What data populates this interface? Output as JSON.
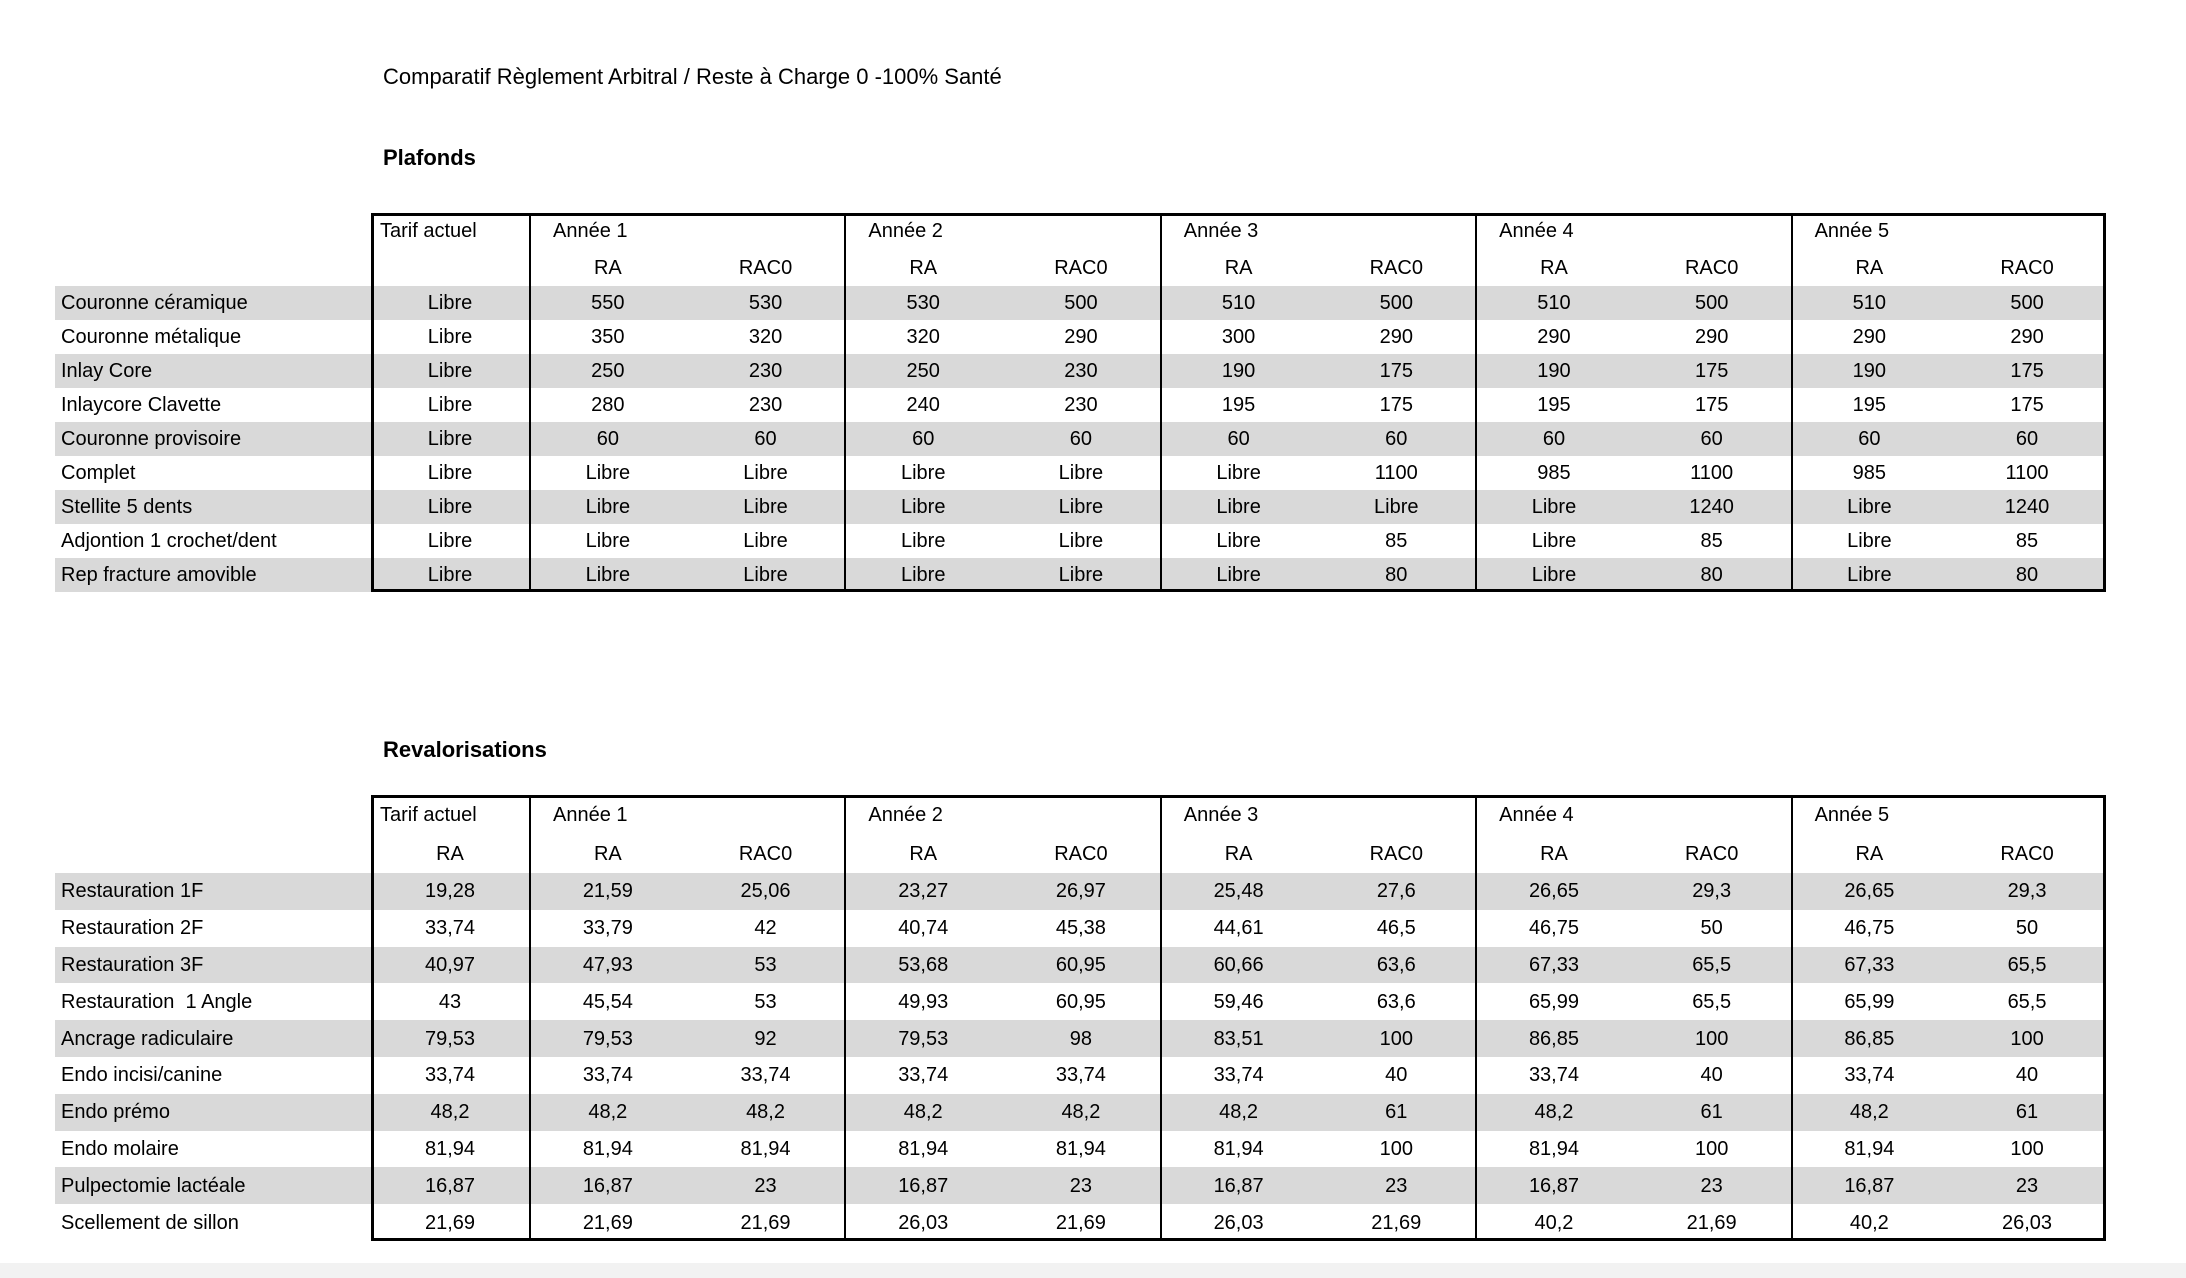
{
  "title": "Comparatif Règlement Arbitral / Reste à Charge 0 -100% Santé",
  "tables": [
    {
      "section_title": "Plafonds",
      "corner_label": "Tarif actuel",
      "corner_sublabel": "",
      "year_headers": [
        "Année 1",
        "Année 2",
        "Année 3",
        "Année 4",
        "Année 5"
      ],
      "sub_headers": [
        "RA",
        "RAC0"
      ],
      "rows": [
        {
          "label": "Couronne céramique",
          "tarif": "Libre",
          "values": [
            "550",
            "530",
            "530",
            "500",
            "510",
            "500",
            "510",
            "500",
            "510",
            "500"
          ]
        },
        {
          "label": "Couronne métalique",
          "tarif": "Libre",
          "values": [
            "350",
            "320",
            "320",
            "290",
            "300",
            "290",
            "290",
            "290",
            "290",
            "290"
          ]
        },
        {
          "label": "Inlay Core",
          "tarif": "Libre",
          "values": [
            "250",
            "230",
            "250",
            "230",
            "190",
            "175",
            "190",
            "175",
            "190",
            "175"
          ]
        },
        {
          "label": "Inlaycore Clavette",
          "tarif": "Libre",
          "values": [
            "280",
            "230",
            "240",
            "230",
            "195",
            "175",
            "195",
            "175",
            "195",
            "175"
          ]
        },
        {
          "label": "Couronne provisoire",
          "tarif": "Libre",
          "values": [
            "60",
            "60",
            "60",
            "60",
            "60",
            "60",
            "60",
            "60",
            "60",
            "60"
          ]
        },
        {
          "label": "Complet",
          "tarif": "Libre",
          "values": [
            "Libre",
            "Libre",
            "Libre",
            "Libre",
            "Libre",
            "1100",
            "985",
            "1100",
            "985",
            "1100"
          ]
        },
        {
          "label": "Stellite 5 dents",
          "tarif": "Libre",
          "values": [
            "Libre",
            "Libre",
            "Libre",
            "Libre",
            "Libre",
            "Libre",
            "Libre",
            "1240",
            "Libre",
            "1240"
          ]
        },
        {
          "label": "Adjontion 1 crochet/dent",
          "tarif": "Libre",
          "values": [
            "Libre",
            "Libre",
            "Libre",
            "Libre",
            "Libre",
            "85",
            "Libre",
            "85",
            "Libre",
            "85"
          ]
        },
        {
          "label": "Rep fracture amovible",
          "tarif": "Libre",
          "values": [
            "Libre",
            "Libre",
            "Libre",
            "Libre",
            "Libre",
            "80",
            "Libre",
            "80",
            "Libre",
            "80"
          ]
        }
      ]
    },
    {
      "section_title": "Revalorisations",
      "corner_label": "Tarif actuel",
      "corner_sublabel": "RA",
      "year_headers": [
        "Année 1",
        "Année 2",
        "Année 3",
        "Année 4",
        "Année 5"
      ],
      "sub_headers": [
        "RA",
        "RAC0"
      ],
      "rows": [
        {
          "label": "Restauration 1F",
          "tarif": "19,28",
          "values": [
            "21,59",
            "25,06",
            "23,27",
            "26,97",
            "25,48",
            "27,6",
            "26,65",
            "29,3",
            "26,65",
            "29,3"
          ]
        },
        {
          "label": "Restauration 2F",
          "tarif": "33,74",
          "values": [
            "33,79",
            "42",
            "40,74",
            "45,38",
            "44,61",
            "46,5",
            "46,75",
            "50",
            "46,75",
            "50"
          ]
        },
        {
          "label": "Restauration 3F",
          "tarif": "40,97",
          "values": [
            "47,93",
            "53",
            "53,68",
            "60,95",
            "60,66",
            "63,6",
            "67,33",
            "65,5",
            "67,33",
            "65,5"
          ]
        },
        {
          "label": "Restauration  1 Angle",
          "tarif": "43",
          "values": [
            "45,54",
            "53",
            "49,93",
            "60,95",
            "59,46",
            "63,6",
            "65,99",
            "65,5",
            "65,99",
            "65,5"
          ]
        },
        {
          "label": "Ancrage radiculaire",
          "tarif": "79,53",
          "values": [
            "79,53",
            "92",
            "79,53",
            "98",
            "83,51",
            "100",
            "86,85",
            "100",
            "86,85",
            "100"
          ]
        },
        {
          "label": "Endo incisi/canine",
          "tarif": "33,74",
          "values": [
            "33,74",
            "33,74",
            "33,74",
            "33,74",
            "33,74",
            "40",
            "33,74",
            "40",
            "33,74",
            "40"
          ]
        },
        {
          "label": "Endo prémo",
          "tarif": "48,2",
          "values": [
            "48,2",
            "48,2",
            "48,2",
            "48,2",
            "48,2",
            "61",
            "48,2",
            "61",
            "48,2",
            "61"
          ]
        },
        {
          "label": "Endo molaire",
          "tarif": "81,94",
          "values": [
            "81,94",
            "81,94",
            "81,94",
            "81,94",
            "81,94",
            "100",
            "81,94",
            "100",
            "81,94",
            "100"
          ]
        },
        {
          "label": "Pulpectomie lactéale",
          "tarif": "16,87",
          "values": [
            "16,87",
            "23",
            "16,87",
            "23",
            "16,87",
            "23",
            "16,87",
            "23",
            "16,87",
            "23"
          ]
        },
        {
          "label": "Scellement de sillon",
          "tarif": "21,69",
          "values": [
            "21,69",
            "21,69",
            "26,03",
            "21,69",
            "26,03",
            "21,69",
            "40,2",
            "21,69",
            "40,2",
            "26,03"
          ]
        }
      ]
    }
  ],
  "stripe_color": "#d9d9d9",
  "border_color": "#000000"
}
